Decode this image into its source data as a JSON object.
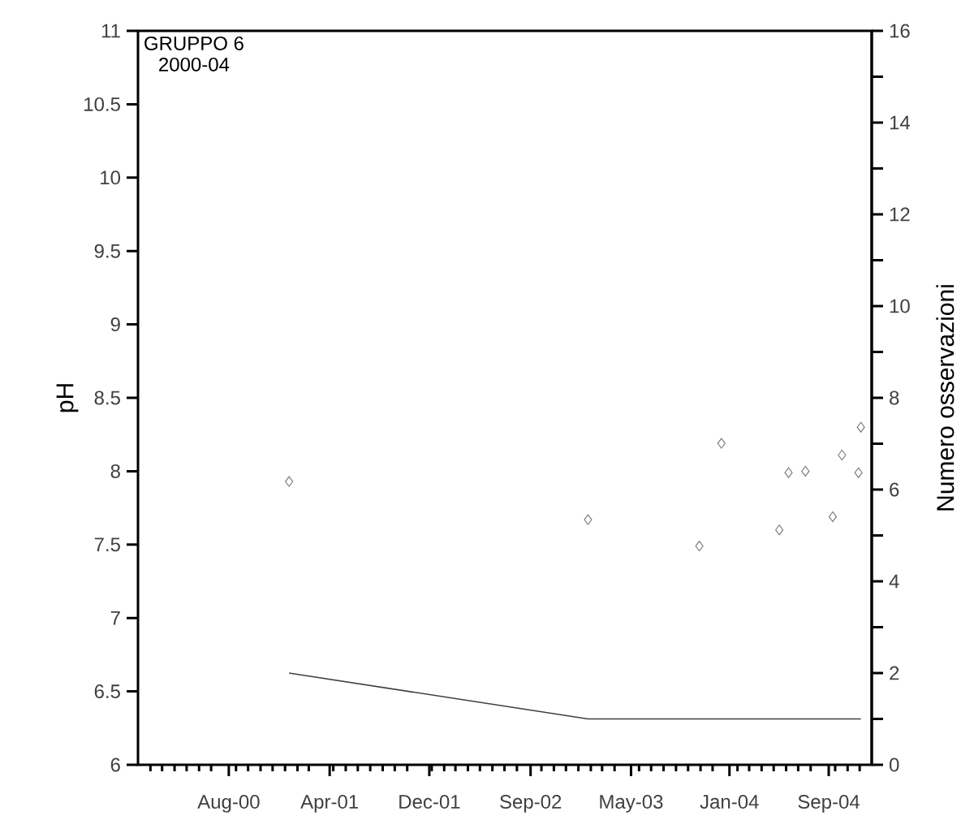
{
  "chart_data": {
    "type": "scatter",
    "title": "GRUPPO 6",
    "subtitle": "2000-04",
    "ylabel": "pH",
    "y2label": "Numero osservazioni",
    "marker": "diamond",
    "xlim": [
      "2000-01-01",
      "2004-12-31"
    ],
    "xticks": [
      {
        "value": "2000-08-14",
        "label": "Aug-00"
      },
      {
        "value": "2001-04-22",
        "label": "Apr-01"
      },
      {
        "value": "2001-12-26",
        "label": "Dec-01"
      },
      {
        "value": "2002-09-04",
        "label": "Sep-02"
      },
      {
        "value": "2003-05-12",
        "label": "May-03"
      },
      {
        "value": "2004-01-12",
        "label": "Jan-04"
      },
      {
        "value": "2004-09-15",
        "label": "Sep-04"
      },
      {
        "value": "2000-02",
        "label": null
      },
      {
        "value": "2000-03",
        "label": null
      },
      {
        "value": "2000-04",
        "label": null
      },
      {
        "value": "2000-05",
        "label": null
      },
      {
        "value": "2000-06",
        "label": null
      },
      {
        "value": "2000-07",
        "label": null
      },
      {
        "value": "2000-09",
        "label": null
      },
      {
        "value": "2000-10",
        "label": null
      },
      {
        "value": "2000-11",
        "label": null
      },
      {
        "value": "2000-12",
        "label": null
      },
      {
        "value": "2001-01",
        "label": null
      },
      {
        "value": "2001-02",
        "label": null
      },
      {
        "value": "2001-03",
        "label": null
      },
      {
        "value": "2001-05",
        "label": null
      },
      {
        "value": "2001-06",
        "label": null
      },
      {
        "value": "2001-07",
        "label": null
      },
      {
        "value": "2001-08",
        "label": null
      },
      {
        "value": "2001-09",
        "label": null
      },
      {
        "value": "2001-10",
        "label": null
      },
      {
        "value": "2001-11",
        "label": null
      },
      {
        "value": "2002-01",
        "label": null
      },
      {
        "value": "2002-02",
        "label": null
      },
      {
        "value": "2002-03",
        "label": null
      },
      {
        "value": "2002-04",
        "label": null
      },
      {
        "value": "2002-05",
        "label": null
      },
      {
        "value": "2002-06",
        "label": null
      },
      {
        "value": "2002-07",
        "label": null
      },
      {
        "value": "2002-08",
        "label": null
      },
      {
        "value": "2002-10",
        "label": null
      },
      {
        "value": "2002-11",
        "label": null
      },
      {
        "value": "2002-12",
        "label": null
      },
      {
        "value": "2003-01",
        "label": null
      },
      {
        "value": "2003-02",
        "label": null
      },
      {
        "value": "2003-03",
        "label": null
      },
      {
        "value": "2003-04",
        "label": null
      },
      {
        "value": "2003-06",
        "label": null
      },
      {
        "value": "2003-07",
        "label": null
      },
      {
        "value": "2003-08",
        "label": null
      },
      {
        "value": "2003-09",
        "label": null
      },
      {
        "value": "2003-10",
        "label": null
      },
      {
        "value": "2003-11",
        "label": null
      },
      {
        "value": "2003-12",
        "label": null
      },
      {
        "value": "2004-02",
        "label": null
      },
      {
        "value": "2004-03",
        "label": null
      },
      {
        "value": "2004-04",
        "label": null
      },
      {
        "value": "2004-05",
        "label": null
      },
      {
        "value": "2004-06",
        "label": null
      },
      {
        "value": "2004-07",
        "label": null
      },
      {
        "value": "2004-08",
        "label": null
      },
      {
        "value": "2004-10",
        "label": null
      },
      {
        "value": "2004-11",
        "label": null
      },
      {
        "value": "2004-12",
        "label": null
      }
    ],
    "ylim": [
      6,
      11
    ],
    "yticks": [
      6,
      6.5,
      7,
      7.5,
      8,
      8.5,
      9,
      9.5,
      10,
      10.5,
      11
    ],
    "y2lim": [
      0,
      16
    ],
    "y2ticks": [
      0,
      {
        "value": 1,
        "label": null
      },
      2,
      {
        "value": 3,
        "label": null
      },
      4,
      {
        "value": 5,
        "label": null
      },
      6,
      {
        "value": 7,
        "label": null
      },
      8,
      {
        "value": 9,
        "label": null
      },
      10,
      {
        "value": 11,
        "label": null
      },
      12,
      {
        "value": 13,
        "label": null
      },
      14,
      {
        "value": 15,
        "label": null
      },
      16
    ],
    "series": [
      {
        "color": "#808080",
        "x": [
          "2001-01-11",
          "2003-01-25",
          "2003-10-29",
          "2003-12-23",
          "2004-05-15",
          "2004-06-07",
          "2004-07-19",
          "2004-09-25",
          "2004-10-18",
          "2004-11-28",
          "2004-12-04"
        ],
        "values": [
          7.93,
          7.67,
          7.49,
          8.19,
          7.6,
          7.99,
          8.0,
          7.69,
          8.11,
          7.99,
          8.3
        ]
      },
      {
        "type": "line",
        "axis": "y2",
        "marker": "none",
        "color": "#404040",
        "x": [
          "2001-01-11",
          "2003-01-25",
          "2004-12-04"
        ],
        "values": [
          2,
          1,
          1
        ]
      }
    ]
  }
}
